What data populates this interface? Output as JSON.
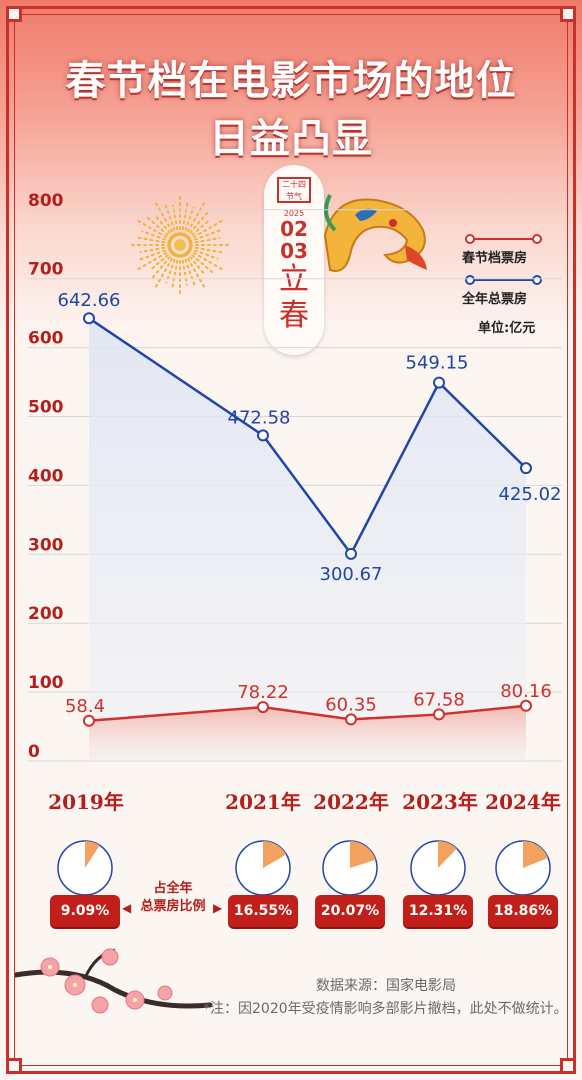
{
  "title": {
    "line1": "春节档在电影市场的地位",
    "line2": "日益凸显"
  },
  "badge": {
    "stamp": "二十四节气",
    "year": "2025",
    "month": "02",
    "day": "03",
    "term1": "立",
    "term2": "春"
  },
  "legend": {
    "spring": "春节档票房",
    "total": "全年总票房",
    "unit": "单位:亿元"
  },
  "colors": {
    "spring": "#d0312d",
    "total": "#1f47a8",
    "accent": "#c21f1b"
  },
  "chart_data": {
    "type": "line",
    "categories": [
      "2019年",
      "2021年",
      "2022年",
      "2023年",
      "2024年"
    ],
    "yticks": [
      0,
      100,
      200,
      300,
      400,
      500,
      600,
      700,
      800
    ],
    "ylim": [
      0,
      800
    ],
    "series": [
      {
        "name": "全年总票房",
        "values": [
          642.66,
          472.58,
          300.67,
          549.15,
          425.02
        ],
        "labels": [
          "642.66",
          "472.58",
          "300.67",
          "549.15",
          "425.02"
        ]
      },
      {
        "name": "春节档票房",
        "values": [
          58.4,
          78.22,
          60.35,
          67.58,
          80.16
        ],
        "labels": [
          "58.4",
          "78.22",
          "60.35",
          "67.58",
          "80.16"
        ]
      }
    ],
    "shares": {
      "caption_line1": "占全年",
      "caption_line2": "总票房比例",
      "values": [
        9.09,
        16.55,
        20.07,
        12.31,
        18.86
      ],
      "labels": [
        "9.09%",
        "16.55%",
        "20.07%",
        "12.31%",
        "18.86%"
      ]
    }
  },
  "footer": {
    "source": "数据来源：国家电影局",
    "note": "*注：因2020年受疫情影响多部影片撤档，此处不做统计。"
  }
}
